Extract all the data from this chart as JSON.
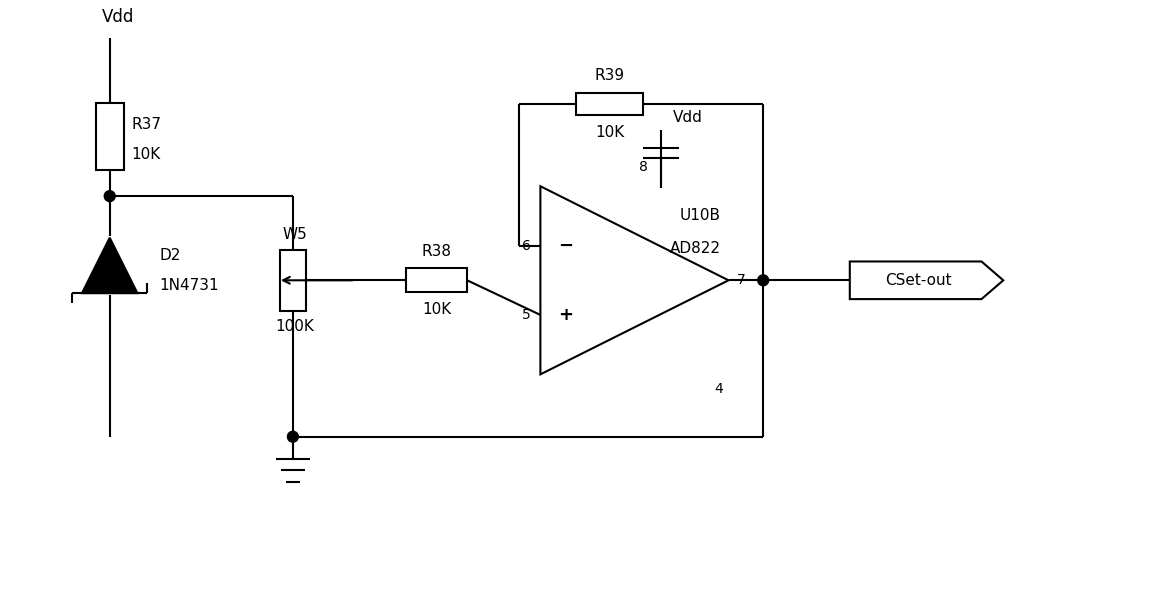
{
  "background_color": "#ffffff",
  "line_color": "#000000",
  "line_width": 1.5,
  "fig_width": 11.61,
  "fig_height": 5.9,
  "vdd_label": "Vdd",
  "r37_label": [
    "R37",
    "10K"
  ],
  "r38_label": [
    "R38",
    "10K"
  ],
  "r39_label": [
    "R39",
    "10K"
  ],
  "w5_label": [
    "W5",
    "100K"
  ],
  "d2_label": [
    "D2",
    "1N4731"
  ],
  "opamp_pin8": "8",
  "opamp_pin6": "6",
  "opamp_pin5": "5",
  "opamp_pin4": "4",
  "opamp_pin7": "7",
  "opamp_name1": "U10B",
  "opamp_name2": "AD822",
  "vdd2_label": "Vdd",
  "cset_label": "CSet-out",
  "minus_sign": "−",
  "plus_sign": "+"
}
